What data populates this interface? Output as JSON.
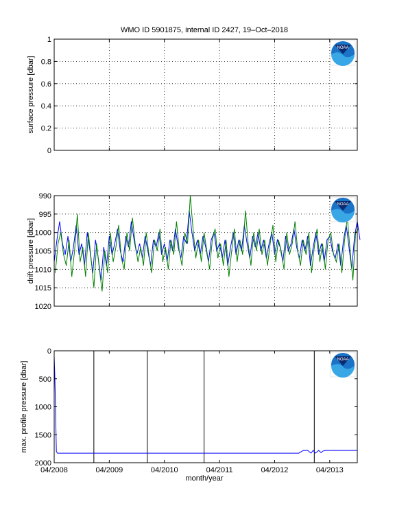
{
  "figure": {
    "title": "WMO ID 5901875, internal ID 2427, 19–Oct–2018",
    "xlabel": "month/year",
    "logo_text": "NOAA",
    "colors": {
      "series_a": "#0000ff",
      "series_b": "#008000",
      "axes": "#000000",
      "vline": "#000000"
    }
  },
  "chart_data": [
    {
      "type": "line",
      "name": "surface",
      "ylabel": "surface pressure [dbar]",
      "ylim": [
        0,
        1
      ],
      "yticks": [
        0,
        0.2,
        0.4,
        0.6,
        0.8,
        1
      ],
      "ytick_labels": [
        "0",
        "0.2",
        "0.4",
        "0.6",
        "0.8",
        "1"
      ],
      "y_reversed": false,
      "grid": true,
      "series": []
    },
    {
      "type": "line",
      "name": "drift",
      "ylabel": "drift pressure [dbar]",
      "ylim": [
        990,
        1020
      ],
      "yticks": [
        990,
        995,
        1000,
        1005,
        1010,
        1015,
        1020
      ],
      "ytick_labels": [
        "990",
        "995",
        "1000",
        "1005",
        "1010",
        "1015",
        "1020"
      ],
      "y_reversed": true,
      "grid": true,
      "series": [
        {
          "color": "#0000ff",
          "x": [
            2008.0,
            2008.05,
            2008.1,
            2008.15,
            2008.2,
            2008.25,
            2008.3,
            2008.35,
            2008.4,
            2008.45,
            2008.5,
            2008.55,
            2008.6,
            2008.65,
            2008.7,
            2008.75,
            2008.8,
            2008.85,
            2008.9,
            2008.95,
            2009.0,
            2009.05,
            2009.1,
            2009.15,
            2009.2,
            2009.25,
            2009.3,
            2009.35,
            2009.4,
            2009.45,
            2009.5,
            2009.55,
            2009.6,
            2009.65,
            2009.7,
            2009.75,
            2009.8,
            2009.85,
            2009.9,
            2009.95,
            2010.0,
            2010.05,
            2010.1,
            2010.15,
            2010.2,
            2010.25,
            2010.3,
            2010.35,
            2010.4,
            2010.45,
            2010.5,
            2010.55,
            2010.6,
            2010.65,
            2010.7,
            2010.75,
            2010.8,
            2010.85,
            2010.9,
            2010.95,
            2011.0,
            2011.05,
            2011.1,
            2011.15,
            2011.2,
            2011.25,
            2011.3,
            2011.35,
            2011.4,
            2011.45,
            2011.5,
            2011.55,
            2011.6,
            2011.65,
            2011.7,
            2011.75,
            2011.8,
            2011.85,
            2011.9,
            2011.95,
            2012.0,
            2012.05,
            2012.1,
            2012.15,
            2012.2,
            2012.25,
            2012.3,
            2012.35,
            2012.4,
            2012.45,
            2012.5,
            2012.55,
            2012.6,
            2012.65,
            2012.7,
            2012.75,
            2012.8,
            2012.85,
            2012.9,
            2012.95,
            2013.0,
            2013.05,
            2013.1,
            2013.15,
            2013.2,
            2013.25,
            2013.3,
            2013.35,
            2013.4,
            2013.45,
            2013.5,
            2013.55
          ],
          "y": [
            1008,
            1002,
            997,
            1003,
            1006,
            1001,
            1008,
            1004,
            998,
            1006,
            1003,
            1009,
            1000,
            1005,
            1011,
            1002,
            1007,
            1013,
            1004,
            1009,
            1001,
            1006,
            1003,
            999,
            1005,
            1008,
            1001,
            1004,
            997,
            1002,
            1006,
            1003,
            1007,
            1001,
            1005,
            1009,
            1002,
            1004,
            1000,
            1006,
            1003,
            1008,
            1002,
            1005,
            999,
            1004,
            1007,
            1001,
            1003,
            994,
            1000,
            1005,
            1002,
            1006,
            1001,
            1004,
            1008,
            1002,
            1000,
            1005,
            1003,
            1007,
            1002,
            1009,
            1004,
            1000,
            1006,
            1002,
            1005,
            998,
            1003,
            1007,
            1001,
            1004,
            1000,
            1005,
            1002,
            1007,
            1003,
            1000,
            1006,
            1002,
            1004,
            1008,
            1001,
            1005,
            1003,
            999,
            1004,
            1007,
            1002,
            1005,
            1001,
            1009,
            1004,
            1000,
            1006,
            1003,
            1008,
            1002,
            1001,
            1005,
            1007,
            1003,
            1009,
            1002,
            998,
            1004,
            1010,
            1001,
            997,
            1002
          ]
        },
        {
          "color": "#008000",
          "x": [
            2008.02,
            2008.07,
            2008.12,
            2008.17,
            2008.22,
            2008.27,
            2008.32,
            2008.37,
            2008.42,
            2008.47,
            2008.52,
            2008.57,
            2008.62,
            2008.67,
            2008.72,
            2008.77,
            2008.82,
            2008.87,
            2008.92,
            2008.97,
            2009.02,
            2009.07,
            2009.12,
            2009.17,
            2009.22,
            2009.27,
            2009.32,
            2009.37,
            2009.42,
            2009.47,
            2009.52,
            2009.57,
            2009.62,
            2009.67,
            2009.72,
            2009.77,
            2009.82,
            2009.87,
            2009.92,
            2009.97,
            2010.02,
            2010.07,
            2010.12,
            2010.17,
            2010.22,
            2010.27,
            2010.32,
            2010.37,
            2010.42,
            2010.47,
            2010.52,
            2010.57,
            2010.62,
            2010.67,
            2010.72,
            2010.77,
            2010.82,
            2010.87,
            2010.92,
            2010.97,
            2011.02,
            2011.07,
            2011.12,
            2011.17,
            2011.22,
            2011.27,
            2011.32,
            2011.37,
            2011.42,
            2011.47,
            2011.52,
            2011.57,
            2011.62,
            2011.67,
            2011.72,
            2011.77,
            2011.82,
            2011.87,
            2011.92,
            2011.97,
            2012.02,
            2012.07,
            2012.12,
            2012.17,
            2012.22,
            2012.27,
            2012.32,
            2012.37,
            2012.42,
            2012.47,
            2012.52,
            2012.57,
            2012.62,
            2012.67,
            2012.72,
            2012.77,
            2012.82,
            2012.87,
            2012.92,
            2012.97,
            2013.02,
            2013.07,
            2013.12,
            2013.17,
            2013.22,
            2013.27,
            2013.32,
            2013.37,
            2013.42,
            2013.47,
            2013.52
          ],
          "y": [
            1011,
            1003,
            1000,
            1006,
            1009,
            1002,
            1012,
            1005,
            995,
            1008,
            1004,
            1012,
            1000,
            1007,
            1015,
            1003,
            1010,
            1016,
            1005,
            1011,
            1000,
            1008,
            1004,
            998,
            1007,
            1010,
            1000,
            1005,
            996,
            1003,
            1008,
            1004,
            1009,
            1000,
            1006,
            1011,
            1002,
            1005,
            999,
            1008,
            1004,
            1010,
            1002,
            1006,
            997,
            1005,
            1009,
            1000,
            1003,
            990,
            999,
            1007,
            1002,
            1008,
            1000,
            1005,
            1010,
            1002,
            999,
            1007,
            1003,
            1009,
            1002,
            1012,
            1005,
            999,
            1008,
            1002,
            1006,
            994,
            1003,
            1009,
            1000,
            1005,
            999,
            1006,
            1002,
            1009,
            1003,
            998,
            1008,
            1002,
            1005,
            1010,
            1000,
            1006,
            1003,
            997,
            1005,
            1009,
            1002,
            1006,
            1000,
            1011,
            1004,
            999,
            1008,
            1003,
            1010,
            1002,
            1000,
            1006,
            1008,
            1003,
            1011,
            1002,
            996,
            1005,
            1013,
            1000,
            999
          ]
        }
      ]
    },
    {
      "type": "line",
      "name": "max-profile",
      "ylabel": "max. profile pressure [dbar]",
      "ylim": [
        0,
        2000
      ],
      "yticks": [
        0,
        500,
        1000,
        1500,
        2000
      ],
      "ytick_labels": [
        "0",
        "500",
        "1000",
        "1500",
        "2000"
      ],
      "y_reversed": true,
      "grid": false,
      "vlines": [
        2008.72,
        2009.69,
        2010.72,
        2012.72
      ],
      "series": [
        {
          "color": "#0000ff",
          "x": [
            2008.0,
            2008.01,
            2008.02,
            2008.03,
            2008.04,
            2008.06,
            2012.44,
            2012.52,
            2012.6,
            2012.66,
            2012.7,
            2012.74,
            2012.8,
            2012.84,
            2012.88,
            2012.92,
            2012.96,
            2013.0,
            2013.5
          ],
          "y": [
            100,
            400,
            800,
            1300,
            1800,
            1830,
            1830,
            1780,
            1780,
            1830,
            1780,
            1830,
            1780,
            1820,
            1790,
            1780,
            1780,
            1780,
            1780
          ]
        }
      ]
    }
  ],
  "xaxis": {
    "xlim": [
      2008.0,
      2013.5
    ],
    "ticks": [
      2008.0,
      2009.0,
      2010.0,
      2011.0,
      2012.0,
      2013.0
    ],
    "tick_labels": [
      "04/2008",
      "04/2009",
      "04/2010",
      "04/2011",
      "04/2012",
      "04/2013"
    ]
  }
}
